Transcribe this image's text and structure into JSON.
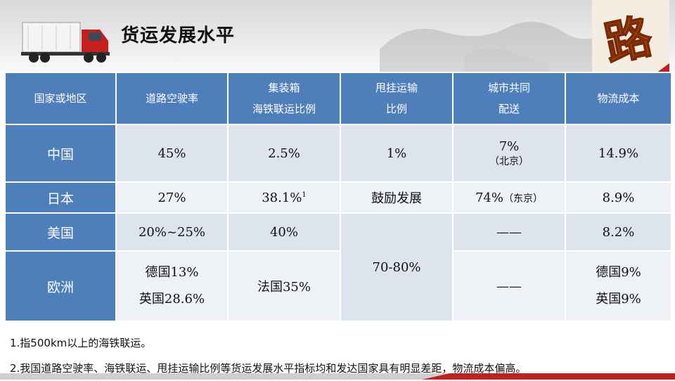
{
  "slide": {
    "title": "货运发展水平",
    "logo_char": "路"
  },
  "table": {
    "headers": [
      {
        "lines": [
          "国家或地区"
        ]
      },
      {
        "lines": [
          "道路空驶率"
        ]
      },
      {
        "lines": [
          "集装箱",
          "海铁联运比例"
        ]
      },
      {
        "lines": [
          "甩挂运输",
          "比例"
        ]
      },
      {
        "lines": [
          "城市共同",
          "配送"
        ]
      },
      {
        "lines": [
          "物流成本"
        ]
      }
    ],
    "rows": {
      "china": {
        "region": "中国",
        "empty_rate": "45%",
        "rail_ratio": "2.5%",
        "trailer": "1%",
        "delivery_value": "7%",
        "delivery_note": "（北京）",
        "cost": "14.9%"
      },
      "japan": {
        "region": "日本",
        "empty_rate": "27%",
        "rail_ratio": "38.1%",
        "rail_ratio_sup": "1",
        "trailer": "鼓励发展",
        "delivery_value": "74%",
        "delivery_note": "（东京）",
        "cost": "8.9%"
      },
      "usa": {
        "region": "美国",
        "empty_rate": "20%~25%",
        "rail_ratio": "40%",
        "trailer_merged": "70-80%",
        "delivery": "——",
        "cost": "8.2%"
      },
      "europe": {
        "region": "欧洲",
        "empty_rate_1": "德国13%",
        "empty_rate_2": "英国28.6%",
        "rail_ratio": "法国35%",
        "delivery": "——",
        "cost_1": "德国9%",
        "cost_2": "英国9%"
      }
    }
  },
  "notes": [
    "1.指500km以上的海铁联运。",
    "2.我国道路空驶率、海铁联运、甩挂运输比例等货运发展水平指标均和发达国家具有明显差距，物流成本偏高。"
  ],
  "colors": {
    "header_bg": "#4f7fba",
    "cell_bg": "#dde4ee",
    "cell_alt_bg": "#eef1f6",
    "logo_orange": "#e8621a",
    "footer_red": "#c0211f"
  }
}
